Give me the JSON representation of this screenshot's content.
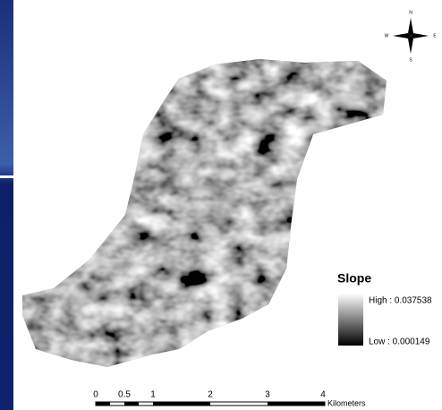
{
  "legend": {
    "title": "Slope",
    "high": "High : 0.037538",
    "low": "Low : 0.000149"
  },
  "scale_bar": {
    "labels": [
      "0",
      "0.5",
      "1",
      "2",
      "3",
      "4"
    ],
    "unit": "Kilometers"
  },
  "compass": {
    "north": "N",
    "south": "S",
    "east": "E",
    "west": "W"
  }
}
